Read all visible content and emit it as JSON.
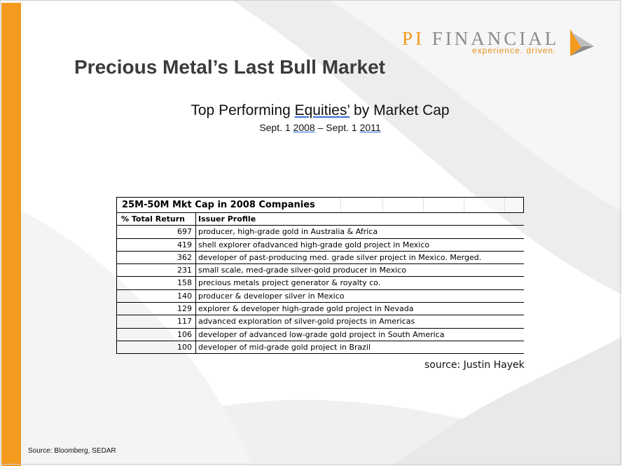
{
  "logo": {
    "name_part1": "PI",
    "name_part2": "FINANCIAL",
    "tagline": "experience. driven.",
    "mark_icon": "pi-financial-sail-logo",
    "brand_orange": "#f39a1f",
    "brand_gray": "#8a8a8a"
  },
  "slide": {
    "title": "Precious Metal’s Last Bull Market",
    "subtitle_pre": "Top Performing ",
    "subtitle_ul": "Equities’",
    "subtitle_post": " by Market Cap",
    "date_pre": "Sept. 1 ",
    "date_y1": "2008",
    "date_mid": " – Sept. 1 ",
    "date_y2": "2011",
    "source_right": "source: Justin Hayek",
    "footer": "Source: Bloomberg, SEDAR"
  },
  "table": {
    "heading": "25M-50M Mkt Cap in 2008 Companies",
    "col1": "% Total Return",
    "col2": "Issuer Profile",
    "rows": [
      {
        "ret": "697",
        "profile": "producer, high-grade gold in Australia & Africa"
      },
      {
        "ret": "419",
        "profile": "shell explorer ofadvanced  high-grade gold project in Mexico"
      },
      {
        "ret": "362",
        "profile": "developer of past-producing med. grade silver project in Mexico. Merged."
      },
      {
        "ret": "231",
        "profile": "small scale, med-grade silver-gold producer in Mexico"
      },
      {
        "ret": "158",
        "profile": "precious metals project generator & royalty co."
      },
      {
        "ret": "140",
        "profile": "producer & developer silver in Mexico"
      },
      {
        "ret": "129",
        "profile": "explorer & developer high-grade gold project in Nevada"
      },
      {
        "ret": "117",
        "profile": "advanced exploration of silver-gold projects in Americas"
      },
      {
        "ret": "106",
        "profile": "developer of advanced low-grade gold project in South America"
      },
      {
        "ret": "100",
        "profile": "developer of mid-grade gold project in Brazil"
      }
    ]
  }
}
